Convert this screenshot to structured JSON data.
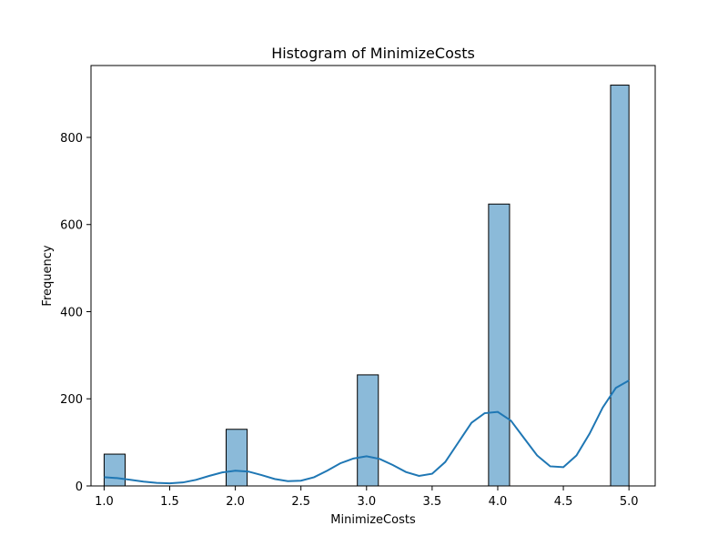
{
  "chart_data": {
    "type": "bar",
    "title": "Histogram of MinimizeCosts",
    "xlabel": "MinimizeCosts",
    "ylabel": "Frequency",
    "xlim": [
      0.9,
      5.2
    ],
    "ylim": [
      0,
      965
    ],
    "xticks": [
      1.0,
      1.5,
      2.0,
      2.5,
      3.0,
      3.5,
      4.0,
      4.5,
      5.0
    ],
    "xtick_labels": [
      "1.0",
      "1.5",
      "2.0",
      "2.5",
      "3.0",
      "3.5",
      "4.0",
      "4.5",
      "5.0"
    ],
    "yticks": [
      0,
      200,
      400,
      600,
      800
    ],
    "ytick_labels": [
      "0",
      "200",
      "400",
      "600",
      "800"
    ],
    "bar_color": "#8bbad9",
    "bar_edge_color": "#000000",
    "kde_color": "#1f77b4",
    "grid": false,
    "legend": "none",
    "bins": [
      {
        "x0": 1.0,
        "x1": 1.16,
        "value": 73
      },
      {
        "x0": 1.93,
        "x1": 2.09,
        "value": 130
      },
      {
        "x0": 2.93,
        "x1": 3.09,
        "value": 255
      },
      {
        "x0": 3.93,
        "x1": 4.09,
        "value": 647
      },
      {
        "x0": 4.86,
        "x1": 5.0,
        "value": 920
      }
    ],
    "kde": {
      "x": [
        1.0,
        1.1,
        1.2,
        1.3,
        1.4,
        1.5,
        1.6,
        1.7,
        1.8,
        1.9,
        2.0,
        2.1,
        2.2,
        2.3,
        2.4,
        2.5,
        2.6,
        2.7,
        2.8,
        2.9,
        3.0,
        3.1,
        3.2,
        3.3,
        3.4,
        3.5,
        3.6,
        3.7,
        3.8,
        3.9,
        4.0,
        4.1,
        4.2,
        4.3,
        4.4,
        4.5,
        4.6,
        4.7,
        4.8,
        4.9,
        5.0
      ],
      "y": [
        20,
        18,
        14,
        10,
        7,
        6,
        8,
        14,
        23,
        31,
        35,
        33,
        25,
        16,
        11,
        12,
        20,
        35,
        52,
        63,
        68,
        62,
        48,
        32,
        23,
        28,
        55,
        100,
        145,
        167,
        170,
        150,
        110,
        70,
        45,
        43,
        70,
        120,
        180,
        225,
        242
      ]
    }
  }
}
